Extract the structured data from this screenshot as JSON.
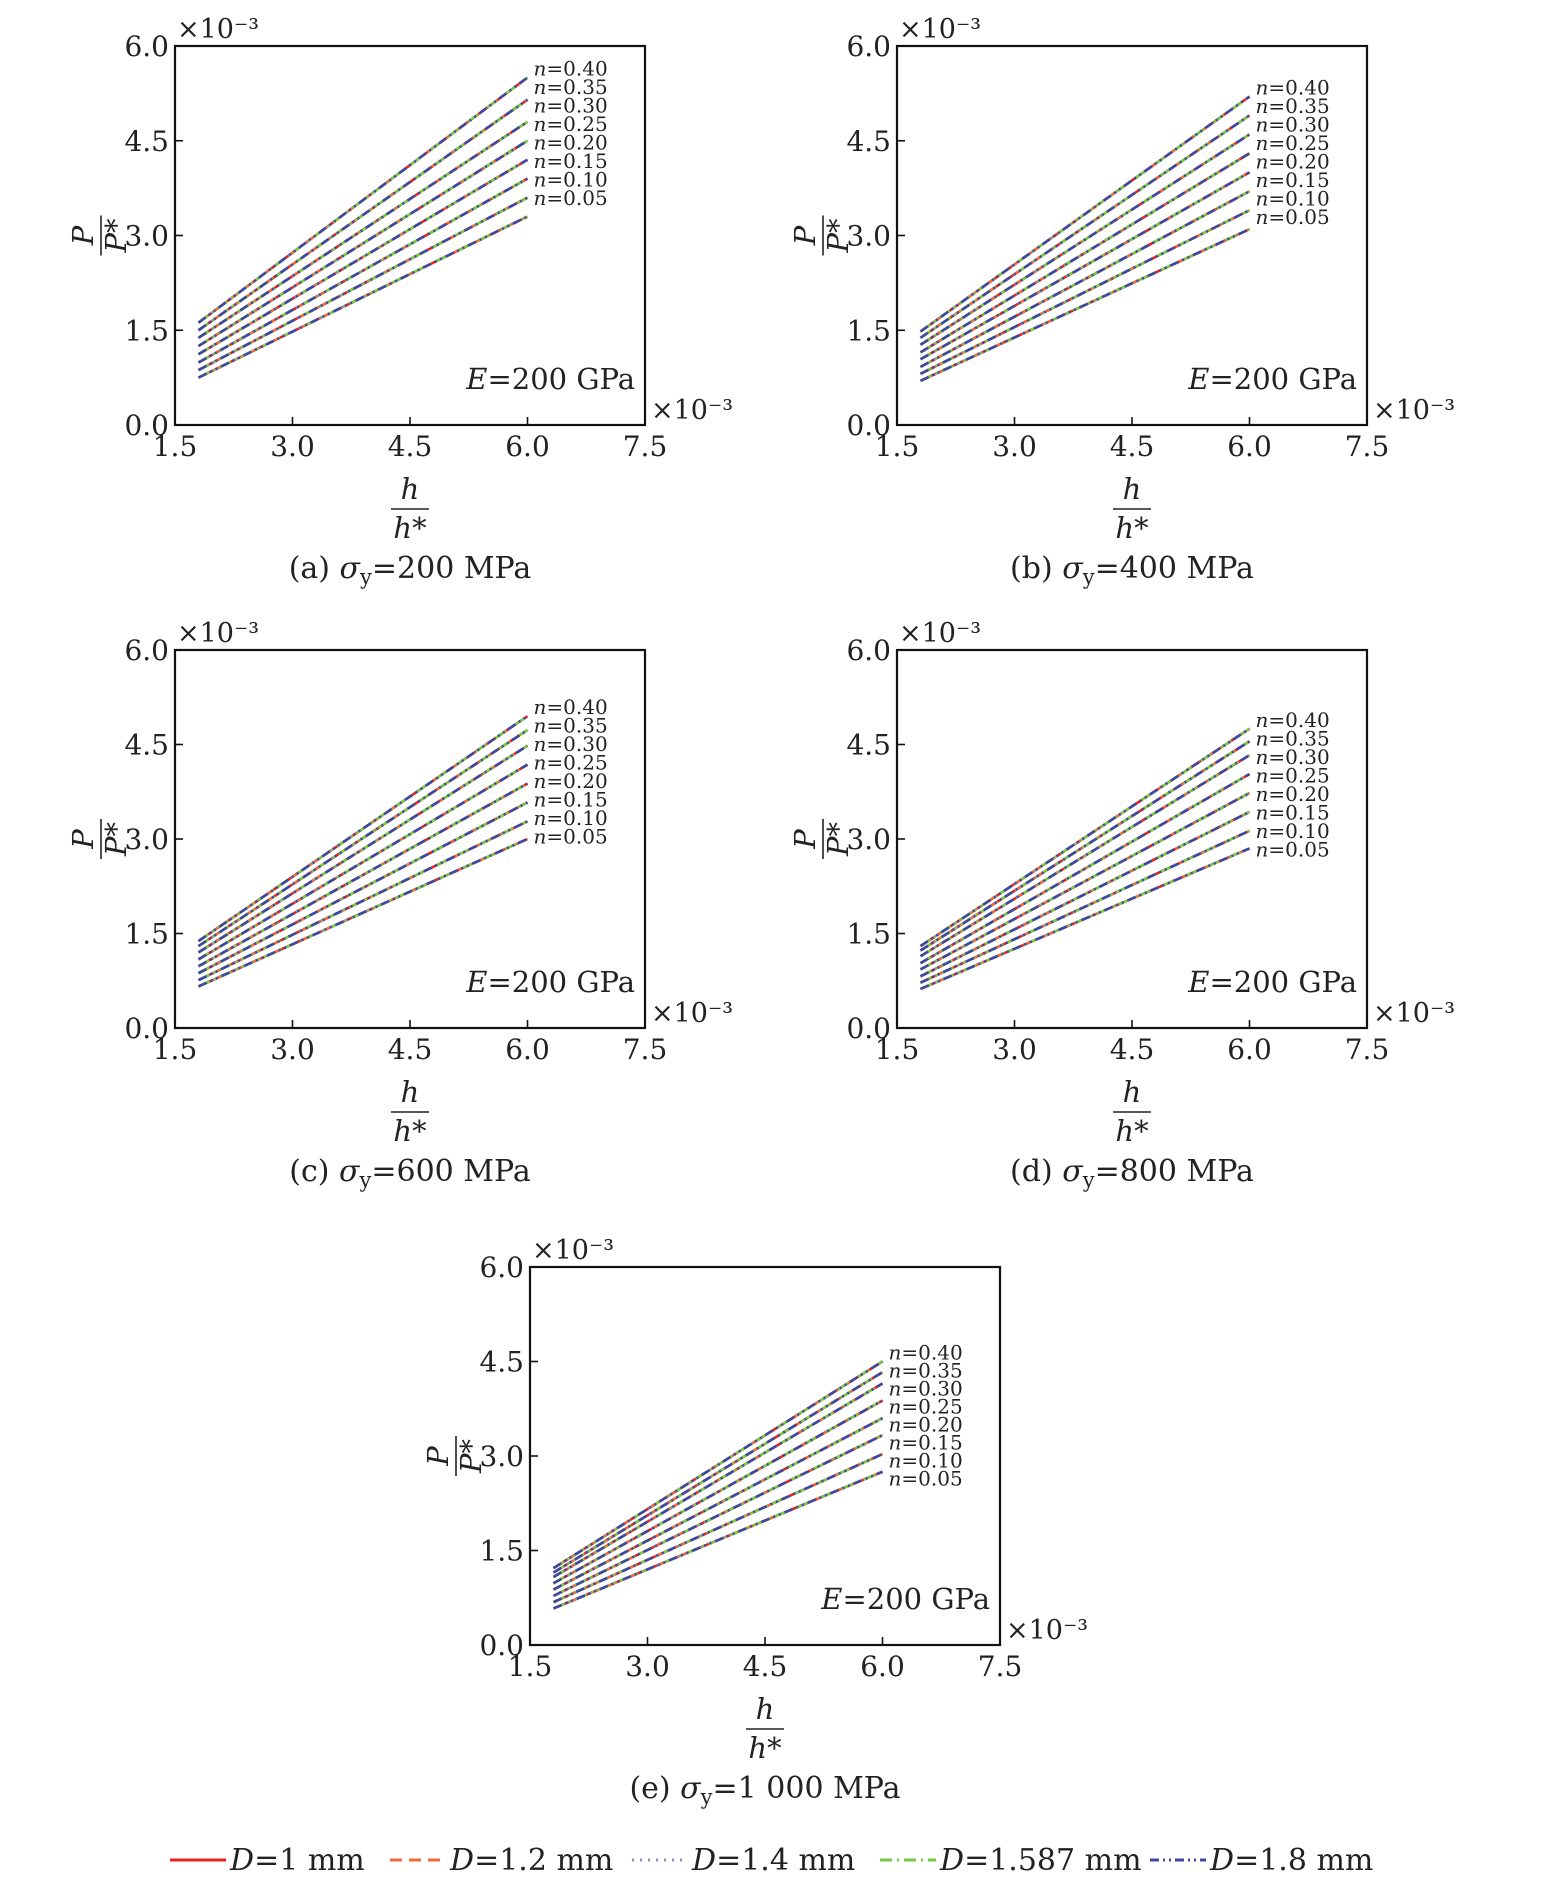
{
  "figure": {
    "legend": [
      {
        "label": "D = 1 mm",
        "text": "D=1 mm",
        "color": "#e8231f",
        "dash": "solid"
      },
      {
        "label": "D = 1.2 mm",
        "text": "D=1.2 mm",
        "color": "#f06a3a",
        "dash": "dashed"
      },
      {
        "label": "D = 1.4 mm",
        "text": "D=1.4 mm",
        "color": "#8a8ec4",
        "dash": "dotted"
      },
      {
        "label": "D = 1.587 mm",
        "text": "D=1.587 mm",
        "color": "#7ac943",
        "dash": "dashdot"
      },
      {
        "label": "D = 1.8 mm",
        "text": "D=1.8 mm",
        "color": "#3b4aa0",
        "dash": "dashdotdot"
      }
    ]
  },
  "chart_data": [
    {
      "id": "a",
      "type": "line",
      "caption": "(a) σy = 200 MPa",
      "caption_prefix": "(a)",
      "caption_value": "=200 MPa",
      "annotation": "E = 200 GPa",
      "annotation_value": "=200 GPa",
      "xlabel": "h/h*",
      "ylabel": "P/P*",
      "x_scale_label": "×10⁻³",
      "y_scale_label": "×10⁻³",
      "xlim": [
        1.5,
        7.5
      ],
      "ylim": [
        0.0,
        6.0
      ],
      "xticks": [
        "1.5",
        "3.0",
        "4.5",
        "6.0",
        "7.5"
      ],
      "yticks": [
        "0.0",
        "1.5",
        "3.0",
        "4.5",
        "6.0"
      ],
      "grid": false,
      "x": [
        1.8,
        6.0
      ],
      "series": [
        {
          "name": "n=0.05",
          "n": "0.05",
          "values": [
            0.75,
            3.3
          ]
        },
        {
          "name": "n=0.10",
          "n": "0.10",
          "values": [
            0.87,
            3.6
          ]
        },
        {
          "name": "n=0.15",
          "n": "0.15",
          "values": [
            0.99,
            3.9
          ]
        },
        {
          "name": "n=0.20",
          "n": "0.20",
          "values": [
            1.12,
            4.2
          ]
        },
        {
          "name": "n=0.25",
          "n": "0.25",
          "values": [
            1.25,
            4.5
          ]
        },
        {
          "name": "n=0.30",
          "n": "0.30",
          "values": [
            1.38,
            4.8
          ]
        },
        {
          "name": "n=0.35",
          "n": "0.35",
          "values": [
            1.5,
            5.15
          ]
        },
        {
          "name": "n=0.40",
          "n": "0.40",
          "values": [
            1.62,
            5.5
          ]
        }
      ]
    },
    {
      "id": "b",
      "type": "line",
      "caption": "(b) σy = 400 MPa",
      "caption_prefix": "(b)",
      "caption_value": "=400 MPa",
      "annotation": "E = 200 GPa",
      "annotation_value": "=200 GPa",
      "xlabel": "h/h*",
      "ylabel": "P/P*",
      "x_scale_label": "×10⁻³",
      "y_scale_label": "×10⁻³",
      "xlim": [
        1.5,
        7.5
      ],
      "ylim": [
        0.0,
        6.0
      ],
      "xticks": [
        "1.5",
        "3.0",
        "4.5",
        "6.0",
        "7.5"
      ],
      "yticks": [
        "0.0",
        "1.5",
        "3.0",
        "4.5",
        "6.0"
      ],
      "grid": false,
      "x": [
        1.8,
        6.0
      ],
      "series": [
        {
          "name": "n=0.05",
          "n": "0.05",
          "values": [
            0.7,
            3.1
          ]
        },
        {
          "name": "n=0.10",
          "n": "0.10",
          "values": [
            0.81,
            3.4
          ]
        },
        {
          "name": "n=0.15",
          "n": "0.15",
          "values": [
            0.92,
            3.7
          ]
        },
        {
          "name": "n=0.20",
          "n": "0.20",
          "values": [
            1.04,
            4.0
          ]
        },
        {
          "name": "n=0.25",
          "n": "0.25",
          "values": [
            1.15,
            4.3
          ]
        },
        {
          "name": "n=0.30",
          "n": "0.30",
          "values": [
            1.27,
            4.6
          ]
        },
        {
          "name": "n=0.35",
          "n": "0.35",
          "values": [
            1.38,
            4.9
          ]
        },
        {
          "name": "n=0.40",
          "n": "0.40",
          "values": [
            1.48,
            5.2
          ]
        }
      ]
    },
    {
      "id": "c",
      "type": "line",
      "caption": "(c) σy = 600 MPa",
      "caption_prefix": "(c)",
      "caption_value": "=600 MPa",
      "annotation": "E = 200 GPa",
      "annotation_value": "=200 GPa",
      "xlabel": "h/h*",
      "ylabel": "P/P*",
      "x_scale_label": "×10⁻³",
      "y_scale_label": "×10⁻³",
      "xlim": [
        1.5,
        7.5
      ],
      "ylim": [
        0.0,
        6.0
      ],
      "xticks": [
        "1.5",
        "3.0",
        "4.5",
        "6.0",
        "7.5"
      ],
      "yticks": [
        "0.0",
        "1.5",
        "3.0",
        "4.5",
        "6.0"
      ],
      "grid": false,
      "x": [
        1.8,
        6.0
      ],
      "series": [
        {
          "name": "n=0.05",
          "n": "0.05",
          "values": [
            0.66,
            3.0
          ]
        },
        {
          "name": "n=0.10",
          "n": "0.10",
          "values": [
            0.76,
            3.28
          ]
        },
        {
          "name": "n=0.15",
          "n": "0.15",
          "values": [
            0.87,
            3.58
          ]
        },
        {
          "name": "n=0.20",
          "n": "0.20",
          "values": [
            0.98,
            3.88
          ]
        },
        {
          "name": "n=0.25",
          "n": "0.25",
          "values": [
            1.09,
            4.18
          ]
        },
        {
          "name": "n=0.30",
          "n": "0.30",
          "values": [
            1.2,
            4.48
          ]
        },
        {
          "name": "n=0.35",
          "n": "0.35",
          "values": [
            1.3,
            4.73
          ]
        },
        {
          "name": "n=0.40",
          "n": "0.40",
          "values": [
            1.38,
            4.95
          ]
        }
      ]
    },
    {
      "id": "d",
      "type": "line",
      "caption": "(d) σy = 800 MPa",
      "caption_prefix": "(d)",
      "caption_value": "=800 MPa",
      "annotation": "E = 200 GPa",
      "annotation_value": "=200 GPa",
      "xlabel": "h/h*",
      "ylabel": "P/P*",
      "x_scale_label": "×10⁻³",
      "y_scale_label": "×10⁻³",
      "xlim": [
        1.5,
        7.5
      ],
      "ylim": [
        0.0,
        6.0
      ],
      "xticks": [
        "1.5",
        "3.0",
        "4.5",
        "6.0",
        "7.5"
      ],
      "yticks": [
        "0.0",
        "1.5",
        "3.0",
        "4.5",
        "6.0"
      ],
      "grid": false,
      "x": [
        1.8,
        6.0
      ],
      "series": [
        {
          "name": "n=0.05",
          "n": "0.05",
          "values": [
            0.62,
            2.85
          ]
        },
        {
          "name": "n=0.10",
          "n": "0.10",
          "values": [
            0.72,
            3.13
          ]
        },
        {
          "name": "n=0.15",
          "n": "0.15",
          "values": [
            0.82,
            3.43
          ]
        },
        {
          "name": "n=0.20",
          "n": "0.20",
          "values": [
            0.93,
            3.73
          ]
        },
        {
          "name": "n=0.25",
          "n": "0.25",
          "values": [
            1.03,
            4.03
          ]
        },
        {
          "name": "n=0.30",
          "n": "0.30",
          "values": [
            1.14,
            4.33
          ]
        },
        {
          "name": "n=0.35",
          "n": "0.35",
          "values": [
            1.23,
            4.55
          ]
        },
        {
          "name": "n=0.40",
          "n": "0.40",
          "values": [
            1.3,
            4.75
          ]
        }
      ]
    },
    {
      "id": "e",
      "type": "line",
      "caption": "(e) σy = 1 000 MPa",
      "caption_prefix": "(e)",
      "caption_value": "=1 000 MPa",
      "annotation": "E = 200 GPa",
      "annotation_value": "=200 GPa",
      "xlabel": "h/h*",
      "ylabel": "P/P*",
      "x_scale_label": "×10⁻³",
      "y_scale_label": "×10⁻³",
      "xlim": [
        1.5,
        7.5
      ],
      "ylim": [
        0.0,
        6.0
      ],
      "xticks": [
        "1.5",
        "3.0",
        "4.5",
        "6.0",
        "7.5"
      ],
      "yticks": [
        "0.0",
        "1.5",
        "3.0",
        "4.5",
        "6.0"
      ],
      "grid": false,
      "x": [
        1.8,
        6.0
      ],
      "series": [
        {
          "name": "n=0.05",
          "n": "0.05",
          "values": [
            0.58,
            2.75
          ]
        },
        {
          "name": "n=0.10",
          "n": "0.10",
          "values": [
            0.68,
            3.03
          ]
        },
        {
          "name": "n=0.15",
          "n": "0.15",
          "values": [
            0.78,
            3.33
          ]
        },
        {
          "name": "n=0.20",
          "n": "0.20",
          "values": [
            0.88,
            3.6
          ]
        },
        {
          "name": "n=0.25",
          "n": "0.25",
          "values": [
            0.98,
            3.88
          ]
        },
        {
          "name": "n=0.30",
          "n": "0.30",
          "values": [
            1.08,
            4.15
          ]
        },
        {
          "name": "n=0.35",
          "n": "0.35",
          "values": [
            1.15,
            4.33
          ]
        },
        {
          "name": "n=0.40",
          "n": "0.40",
          "values": [
            1.22,
            4.5
          ]
        }
      ]
    }
  ]
}
